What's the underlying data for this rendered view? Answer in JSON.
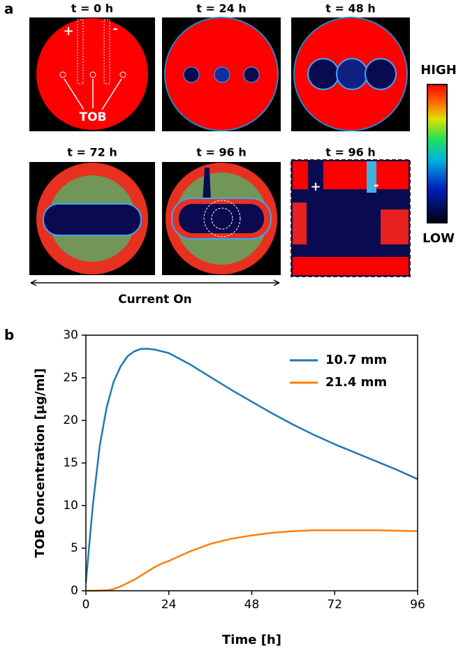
{
  "panel_a": {
    "label": "a",
    "titles": [
      "t = 0 h",
      "t = 24 h",
      "t = 48 h",
      "t = 72 h",
      "t = 96 h",
      "t = 96 h"
    ],
    "plus": "+",
    "minus": "-",
    "tob": "TOB",
    "zoom_plus": "+",
    "zoom_minus": "-",
    "high": "HIGH",
    "low": "LOW",
    "arrow_label": "Current On"
  },
  "chart_data": {
    "type": "line",
    "panel_label": "b",
    "xlabel": "Time [h]",
    "ylabel": "TOB Concentration [μg/ml]",
    "x": [
      0,
      2,
      4,
      6,
      8,
      10,
      12,
      14,
      16,
      18,
      20,
      22,
      24,
      30,
      36,
      42,
      48,
      54,
      60,
      66,
      72,
      78,
      84,
      90,
      96
    ],
    "series": [
      {
        "name": "10.7 mm",
        "color": "#1f77b4",
        "values": [
          1,
          10,
          17,
          21.5,
          24.5,
          26.3,
          27.5,
          28.1,
          28.4,
          28.4,
          28.3,
          28.1,
          27.9,
          26.6,
          25.1,
          23.6,
          22.2,
          20.8,
          19.5,
          18.3,
          17.2,
          16.2,
          15.2,
          14.2,
          13.1
        ]
      },
      {
        "name": "21.4 mm",
        "color": "#ff7f0e",
        "values": [
          0,
          0,
          0.02,
          0.05,
          0.2,
          0.5,
          0.9,
          1.3,
          1.8,
          2.3,
          2.8,
          3.2,
          3.5,
          4.6,
          5.5,
          6.1,
          6.5,
          6.8,
          7.0,
          7.1,
          7.1,
          7.1,
          7.1,
          7.05,
          7.0
        ]
      }
    ],
    "xlim": [
      0,
      96
    ],
    "xticks": [
      0,
      24,
      48,
      72,
      96
    ],
    "ylim": [
      0,
      30
    ],
    "yticks": [
      0,
      5,
      10,
      15,
      20,
      25,
      30
    ],
    "legend": "upper right"
  }
}
